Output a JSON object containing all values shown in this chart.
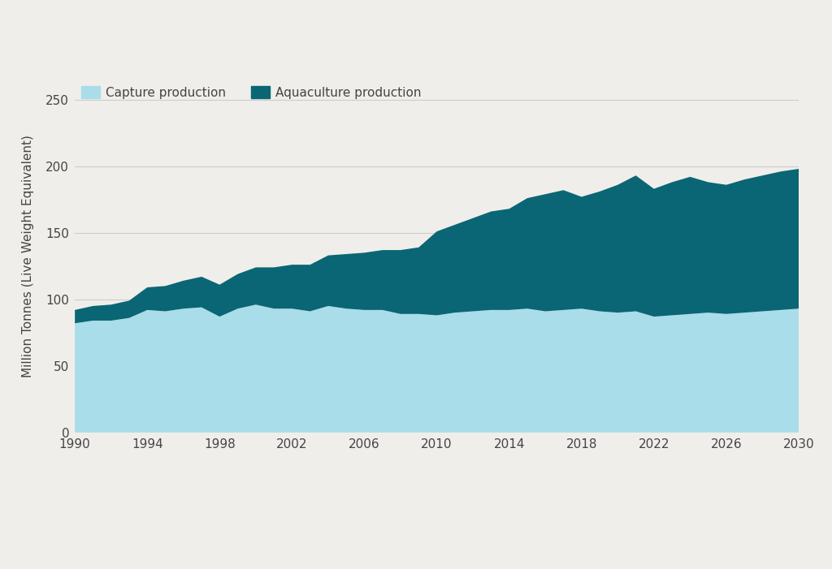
{
  "ylabel": "Million Tonnes (Live Weight Equivalent)",
  "background_color": "#f0eeea",
  "plot_background_color": "#f0eeea",
  "capture_color": "#a8dde9",
  "aquaculture_color": "#0a6674",
  "banner_color": "#1a8a96",
  "ylim": [
    0,
    265
  ],
  "yticks": [
    0,
    50,
    100,
    150,
    200,
    250
  ],
  "xticks": [
    1990,
    1994,
    1998,
    2002,
    2006,
    2010,
    2014,
    2018,
    2022,
    2026,
    2030
  ],
  "legend_capture": "Capture production",
  "legend_aquaculture": "Aquaculture production",
  "years": [
    1990,
    1991,
    1992,
    1993,
    1994,
    1995,
    1996,
    1997,
    1998,
    1999,
    2000,
    2001,
    2002,
    2003,
    2004,
    2005,
    2006,
    2007,
    2008,
    2009,
    2010,
    2011,
    2012,
    2013,
    2014,
    2015,
    2016,
    2017,
    2018,
    2019,
    2020,
    2021,
    2022,
    2023,
    2024,
    2025,
    2026,
    2027,
    2028,
    2029,
    2030
  ],
  "capture": [
    82,
    84,
    84,
    86,
    92,
    91,
    93,
    94,
    87,
    93,
    96,
    93,
    93,
    91,
    95,
    93,
    92,
    92,
    89,
    89,
    88,
    90,
    91,
    92,
    92,
    93,
    91,
    92,
    93,
    91,
    90,
    91,
    87,
    88,
    89,
    90,
    89,
    90,
    91,
    92,
    93
  ],
  "aquaculture": [
    10,
    11,
    12,
    13,
    17,
    19,
    21,
    23,
    24,
    26,
    28,
    31,
    33,
    35,
    38,
    41,
    43,
    45,
    48,
    50,
    63,
    66,
    70,
    74,
    76,
    83,
    88,
    90,
    84,
    90,
    96,
    102,
    96,
    100,
    103,
    98,
    97,
    100,
    102,
    104,
    105
  ]
}
